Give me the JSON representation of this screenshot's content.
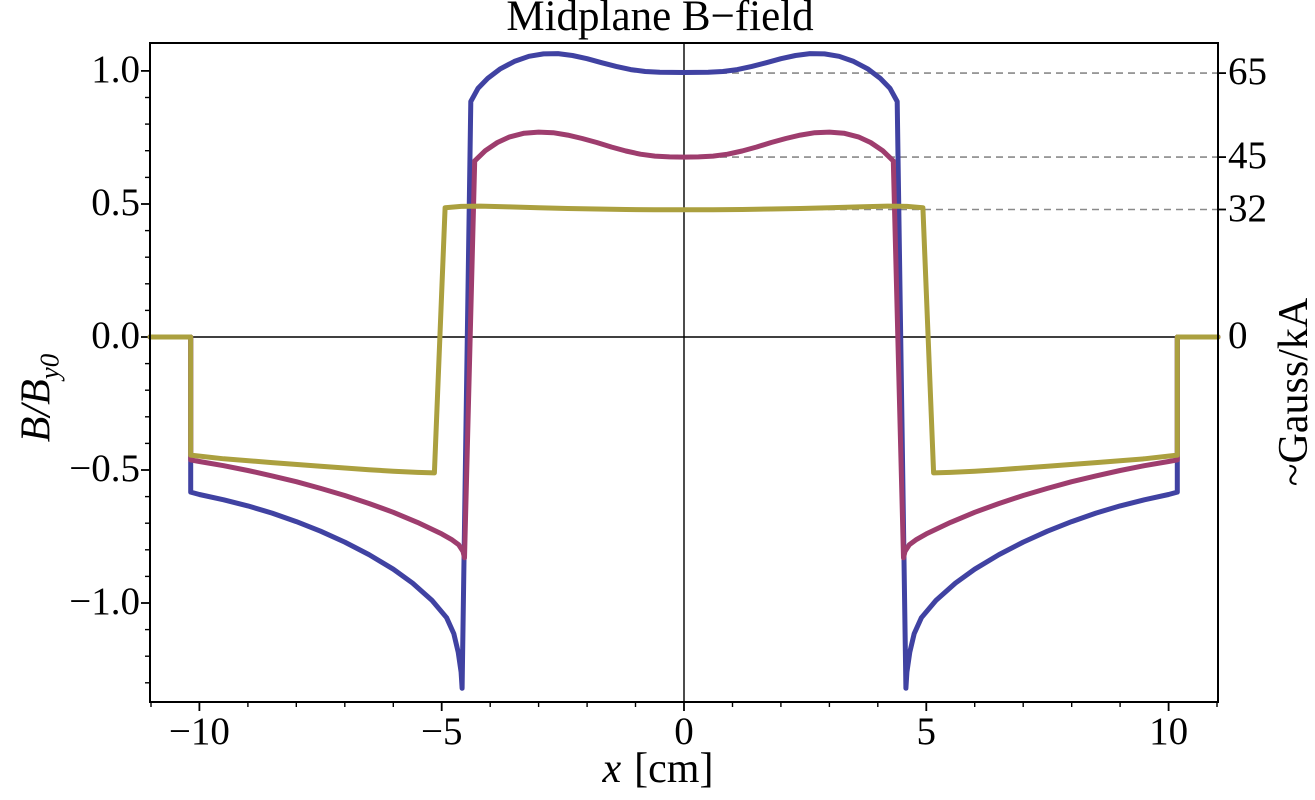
{
  "title": "Midplane B−field",
  "axes": {
    "y_left_label_main": "B/B",
    "y_left_label_sub": "y0",
    "x_bottom_label_var": "x",
    "x_bottom_label_unit": "[cm]",
    "y_right_label": "~Gauss/kA"
  },
  "colors": {
    "curve_blue": "#4042A2",
    "curve_magenta": "#9E3D6E",
    "curve_olive": "#ABA03F",
    "frame": "#000000",
    "guide_dash": "#8a8a8a",
    "background": "#ffffff"
  },
  "chart_data": {
    "type": "line",
    "title": "Midplane B−field",
    "xlabel": "x [cm]",
    "ylabel_left": "B/B_y0",
    "ylabel_right": "~Gauss/kA",
    "xlim": [
      -11.02,
      11.02
    ],
    "ylim": [
      -1.372,
      1.105
    ],
    "grid": false,
    "legend": "none",
    "x_ticks": {
      "values": [
        -10,
        -5,
        0,
        5,
        10
      ],
      "labels": [
        "−10",
        "−5",
        "0",
        "5",
        "10"
      ],
      "minor_step": 1
    },
    "y_ticks": {
      "values": [
        1.0,
        0.5,
        0.0,
        -0.5,
        -1.0
      ],
      "labels": [
        "1.0",
        "0.5",
        "0.0",
        "−0.5",
        "−1.0"
      ],
      "minor_step": 0.1
    },
    "right_ticks": [
      {
        "pos": 0.992,
        "label": "65",
        "guide": true
      },
      {
        "pos": 0.676,
        "label": "45",
        "guide": true
      },
      {
        "pos": 0.479,
        "label": "32",
        "guide": true
      },
      {
        "pos": 0.0,
        "label": "0",
        "guide": false
      }
    ],
    "guide_dash_x_from": 0,
    "series": [
      {
        "name": "65",
        "color": "#4042A2",
        "points": [
          [
            -11.02,
            0
          ],
          [
            -10.18,
            0
          ],
          [
            -10.18,
            -0.583
          ],
          [
            -10,
            -0.592
          ],
          [
            -9.5,
            -0.612
          ],
          [
            -9,
            -0.635
          ],
          [
            -8.5,
            -0.662
          ],
          [
            -8,
            -0.694
          ],
          [
            -7.5,
            -0.73
          ],
          [
            -7,
            -0.771
          ],
          [
            -6.5,
            -0.818
          ],
          [
            -6,
            -0.873
          ],
          [
            -5.6,
            -0.925
          ],
          [
            -5.2,
            -0.99
          ],
          [
            -4.9,
            -1.055
          ],
          [
            -4.75,
            -1.115
          ],
          [
            -4.66,
            -1.185
          ],
          [
            -4.6,
            -1.26
          ],
          [
            -4.58,
            -1.32
          ],
          [
            -4.4,
            0.885
          ],
          [
            -4.25,
            0.935
          ],
          [
            -4.05,
            0.972
          ],
          [
            -3.8,
            1.007
          ],
          [
            -3.5,
            1.036
          ],
          [
            -3.2,
            1.055
          ],
          [
            -2.9,
            1.064
          ],
          [
            -2.6,
            1.065
          ],
          [
            -2.3,
            1.058
          ],
          [
            -2,
            1.046
          ],
          [
            -1.7,
            1.031
          ],
          [
            -1.4,
            1.017
          ],
          [
            -1.1,
            1.005
          ],
          [
            -0.8,
            0.998
          ],
          [
            -0.5,
            0.995
          ],
          [
            0,
            0.994
          ],
          [
            0.5,
            0.995
          ],
          [
            0.8,
            0.998
          ],
          [
            1.1,
            1.005
          ],
          [
            1.4,
            1.017
          ],
          [
            1.7,
            1.031
          ],
          [
            2,
            1.046
          ],
          [
            2.3,
            1.058
          ],
          [
            2.6,
            1.065
          ],
          [
            2.9,
            1.064
          ],
          [
            3.2,
            1.055
          ],
          [
            3.5,
            1.036
          ],
          [
            3.8,
            1.007
          ],
          [
            4.05,
            0.972
          ],
          [
            4.25,
            0.935
          ],
          [
            4.4,
            0.885
          ],
          [
            4.58,
            -1.32
          ],
          [
            4.6,
            -1.26
          ],
          [
            4.66,
            -1.185
          ],
          [
            4.75,
            -1.115
          ],
          [
            4.9,
            -1.055
          ],
          [
            5.2,
            -0.99
          ],
          [
            5.6,
            -0.925
          ],
          [
            6,
            -0.873
          ],
          [
            6.5,
            -0.818
          ],
          [
            7,
            -0.771
          ],
          [
            7.5,
            -0.73
          ],
          [
            8,
            -0.694
          ],
          [
            8.5,
            -0.662
          ],
          [
            9,
            -0.635
          ],
          [
            9.5,
            -0.612
          ],
          [
            10,
            -0.592
          ],
          [
            10.18,
            -0.583
          ],
          [
            10.18,
            0
          ],
          [
            11.02,
            0
          ]
        ]
      },
      {
        "name": "45",
        "color": "#9E3D6E",
        "points": [
          [
            -11.02,
            0
          ],
          [
            -10.18,
            0
          ],
          [
            -10.18,
            -0.462
          ],
          [
            -10,
            -0.468
          ],
          [
            -9.5,
            -0.484
          ],
          [
            -9,
            -0.502
          ],
          [
            -8.5,
            -0.522
          ],
          [
            -8,
            -0.544
          ],
          [
            -7.5,
            -0.569
          ],
          [
            -7,
            -0.596
          ],
          [
            -6.5,
            -0.626
          ],
          [
            -6,
            -0.659
          ],
          [
            -5.5,
            -0.697
          ],
          [
            -5,
            -0.74
          ],
          [
            -4.8,
            -0.761
          ],
          [
            -4.65,
            -0.781
          ],
          [
            -4.56,
            -0.806
          ],
          [
            -4.53,
            -0.83
          ],
          [
            -4.32,
            0.662
          ],
          [
            -4.1,
            0.7
          ],
          [
            -3.85,
            0.731
          ],
          [
            -3.6,
            0.752
          ],
          [
            -3.3,
            0.766
          ],
          [
            -3,
            0.77
          ],
          [
            -2.7,
            0.768
          ],
          [
            -2.4,
            0.759
          ],
          [
            -2.1,
            0.746
          ],
          [
            -1.8,
            0.731
          ],
          [
            -1.5,
            0.714
          ],
          [
            -1.2,
            0.699
          ],
          [
            -0.9,
            0.687
          ],
          [
            -0.6,
            0.68
          ],
          [
            -0.3,
            0.677
          ],
          [
            0,
            0.676
          ],
          [
            0.3,
            0.677
          ],
          [
            0.6,
            0.68
          ],
          [
            0.9,
            0.687
          ],
          [
            1.2,
            0.699
          ],
          [
            1.5,
            0.714
          ],
          [
            1.8,
            0.731
          ],
          [
            2.1,
            0.746
          ],
          [
            2.4,
            0.759
          ],
          [
            2.7,
            0.768
          ],
          [
            3,
            0.77
          ],
          [
            3.3,
            0.766
          ],
          [
            3.6,
            0.752
          ],
          [
            3.85,
            0.731
          ],
          [
            4.1,
            0.7
          ],
          [
            4.32,
            0.662
          ],
          [
            4.53,
            -0.83
          ],
          [
            4.56,
            -0.806
          ],
          [
            4.65,
            -0.781
          ],
          [
            4.8,
            -0.761
          ],
          [
            5,
            -0.74
          ],
          [
            5.5,
            -0.697
          ],
          [
            6,
            -0.659
          ],
          [
            6.5,
            -0.626
          ],
          [
            7,
            -0.596
          ],
          [
            7.5,
            -0.569
          ],
          [
            8,
            -0.544
          ],
          [
            8.5,
            -0.522
          ],
          [
            9,
            -0.502
          ],
          [
            9.5,
            -0.484
          ],
          [
            10,
            -0.468
          ],
          [
            10.18,
            -0.462
          ],
          [
            10.18,
            0
          ],
          [
            11.02,
            0
          ]
        ]
      },
      {
        "name": "32",
        "color": "#ABA03F",
        "points": [
          [
            -11.02,
            0
          ],
          [
            -10.18,
            0
          ],
          [
            -10.18,
            -0.444
          ],
          [
            -9.5,
            -0.458
          ],
          [
            -8.5,
            -0.472
          ],
          [
            -7.5,
            -0.486
          ],
          [
            -6.5,
            -0.499
          ],
          [
            -6,
            -0.505
          ],
          [
            -5.5,
            -0.509
          ],
          [
            -5.15,
            -0.511
          ],
          [
            -4.93,
            0.486
          ],
          [
            -4.6,
            0.491
          ],
          [
            -4.2,
            0.492
          ],
          [
            -3.6,
            0.489
          ],
          [
            -3,
            0.486
          ],
          [
            -2.4,
            0.483
          ],
          [
            -1.8,
            0.481
          ],
          [
            -1.2,
            0.479
          ],
          [
            -0.6,
            0.478
          ],
          [
            0,
            0.478
          ],
          [
            0.6,
            0.478
          ],
          [
            1.2,
            0.479
          ],
          [
            1.8,
            0.481
          ],
          [
            2.4,
            0.483
          ],
          [
            3,
            0.486
          ],
          [
            3.6,
            0.489
          ],
          [
            4.2,
            0.492
          ],
          [
            4.6,
            0.491
          ],
          [
            4.93,
            0.486
          ],
          [
            5.15,
            -0.511
          ],
          [
            5.5,
            -0.509
          ],
          [
            6,
            -0.505
          ],
          [
            6.5,
            -0.499
          ],
          [
            7.5,
            -0.486
          ],
          [
            8.5,
            -0.472
          ],
          [
            9.5,
            -0.458
          ],
          [
            10.18,
            -0.444
          ],
          [
            10.18,
            0
          ],
          [
            11.02,
            0
          ]
        ]
      }
    ]
  }
}
